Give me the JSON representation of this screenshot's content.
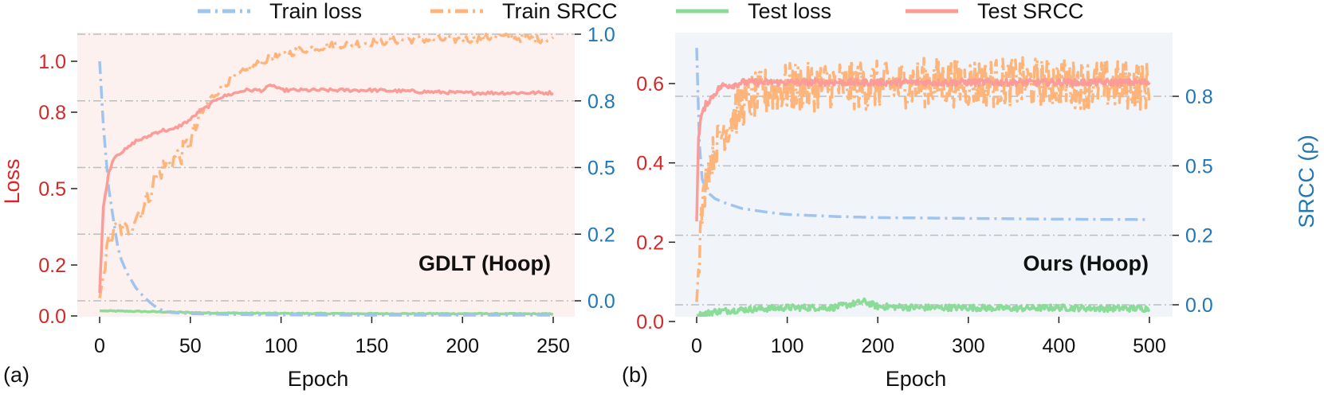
{
  "legend": [
    {
      "label": "Train loss",
      "color": "#a0c4ee",
      "dash": "dashdot"
    },
    {
      "label": "Train SRCC",
      "color": "#fdb57c",
      "dash": "dashdot"
    },
    {
      "label": "Test loss",
      "color": "#8bdc98",
      "dash": "solid"
    },
    {
      "label": "Test SRCC",
      "color": "#fb9c98",
      "dash": "solid"
    }
  ],
  "colors": {
    "loss_axis": "#d62728",
    "srcc_axis": "#1f77b4",
    "panel_a_bg": "#fdf1ef",
    "panel_b_bg": "#f1f5f9",
    "grid": "#bdbdbd"
  },
  "chart_data": [
    {
      "type": "line",
      "panel_label": "(a)",
      "annotation": "GDLT (Hoop)",
      "xlabel": "Epoch",
      "ylabel_left": "Loss",
      "ylabel_right": "",
      "xlim": [
        0,
        250
      ],
      "ylim_left": [
        0,
        1.0
      ],
      "ylim_right": [
        0,
        1.0
      ],
      "xticks": [
        0,
        50,
        100,
        150,
        200,
        250
      ],
      "yticks_left": [
        "0.0",
        "0.2",
        "0.5",
        "0.8",
        "1.0"
      ],
      "yticks_left_values": [
        0.0,
        0.2,
        0.5,
        0.8,
        1.0
      ],
      "yticks_right": [
        "0.0",
        "0.2",
        "0.5",
        "0.8",
        "1.0"
      ],
      "yticks_right_values": [
        0.0,
        0.25,
        0.5,
        0.75,
        1.0
      ],
      "grid": "horizontal dash-dot",
      "series": [
        {
          "name": "Train loss",
          "axis": "left",
          "x": [
            0,
            2,
            5,
            8,
            10,
            12,
            15,
            20,
            25,
            30,
            35,
            40,
            50,
            70,
            100,
            150,
            200,
            250
          ],
          "y": [
            1.0,
            0.75,
            0.5,
            0.36,
            0.27,
            0.22,
            0.17,
            0.11,
            0.07,
            0.04,
            0.02,
            0.013,
            0.009,
            0.006,
            0.004,
            0.003,
            0.003,
            0.003
          ]
        },
        {
          "name": "Train SRCC",
          "axis": "right",
          "x": [
            0,
            5,
            10,
            15,
            20,
            25,
            30,
            35,
            40,
            45,
            50,
            55,
            60,
            70,
            80,
            90,
            100,
            110,
            120,
            130,
            150,
            170,
            200,
            220,
            250
          ],
          "y": [
            0.01,
            0.22,
            0.28,
            0.26,
            0.32,
            0.36,
            0.45,
            0.5,
            0.53,
            0.55,
            0.6,
            0.68,
            0.75,
            0.82,
            0.86,
            0.9,
            0.92,
            0.94,
            0.95,
            0.96,
            0.97,
            0.98,
            0.98,
            0.99,
            0.98
          ]
        },
        {
          "name": "Test loss",
          "axis": "left",
          "x": [
            0,
            20,
            40,
            60,
            100,
            150,
            200,
            250
          ],
          "y": [
            0.02,
            0.018,
            0.015,
            0.012,
            0.01,
            0.009,
            0.009,
            0.008
          ]
        },
        {
          "name": "Test SRCC",
          "axis": "right",
          "x": [
            0,
            2,
            5,
            8,
            10,
            15,
            20,
            25,
            30,
            35,
            40,
            45,
            50,
            55,
            60,
            65,
            70,
            80,
            90,
            95,
            100,
            120,
            150,
            200,
            250
          ],
          "y": [
            0.03,
            0.35,
            0.48,
            0.54,
            0.55,
            0.57,
            0.6,
            0.61,
            0.63,
            0.64,
            0.64,
            0.66,
            0.68,
            0.71,
            0.73,
            0.76,
            0.77,
            0.79,
            0.79,
            0.81,
            0.79,
            0.79,
            0.79,
            0.78,
            0.78
          ]
        }
      ]
    },
    {
      "type": "line",
      "panel_label": "(b)",
      "annotation": "Ours (Hoop)",
      "xlabel": "Epoch",
      "ylabel_left": "",
      "ylabel_right": "SRCC (ρ)",
      "xlim": [
        0,
        500
      ],
      "ylim_left": [
        0,
        0.6
      ],
      "ylim_right": [
        0,
        0.8
      ],
      "xticks": [
        0,
        100,
        200,
        300,
        400,
        500
      ],
      "yticks_left": [
        "0.0",
        "0.2",
        "0.4",
        "0.6"
      ],
      "yticks_left_values": [
        0.0,
        0.2,
        0.4,
        0.6
      ],
      "yticks_right": [
        "0.0",
        "0.2",
        "0.5",
        "0.8"
      ],
      "yticks_right_values": [
        0.0,
        0.25,
        0.5,
        0.75
      ],
      "grid": "horizontal dash-dot",
      "series": [
        {
          "name": "Train loss",
          "axis": "left",
          "x": [
            0,
            3,
            6,
            10,
            15,
            20,
            30,
            50,
            80,
            100,
            150,
            200,
            300,
            400,
            500
          ],
          "y": [
            0.69,
            0.45,
            0.36,
            0.33,
            0.32,
            0.31,
            0.3,
            0.285,
            0.275,
            0.27,
            0.265,
            0.262,
            0.26,
            0.258,
            0.257
          ]
        },
        {
          "name": "Train SRCC",
          "axis": "right",
          "x": [
            0,
            5,
            10,
            15,
            20,
            25,
            30,
            40,
            50,
            60,
            80,
            100,
            150,
            200,
            250,
            300,
            350,
            400,
            450,
            500
          ],
          "y": [
            0.01,
            0.3,
            0.45,
            0.52,
            0.55,
            0.6,
            0.63,
            0.68,
            0.72,
            0.74,
            0.77,
            0.78,
            0.79,
            0.79,
            0.8,
            0.8,
            0.8,
            0.8,
            0.79,
            0.79
          ]
        },
        {
          "name": "Test loss",
          "axis": "left",
          "x": [
            0,
            20,
            50,
            100,
            150,
            185,
            200,
            250,
            300,
            350,
            400,
            450,
            500
          ],
          "y": [
            0.015,
            0.025,
            0.03,
            0.035,
            0.035,
            0.05,
            0.038,
            0.035,
            0.035,
            0.033,
            0.035,
            0.033,
            0.033
          ]
        },
        {
          "name": "Test SRCC",
          "axis": "right",
          "x": [
            0,
            2,
            5,
            8,
            10,
            15,
            20,
            25,
            30,
            40,
            50,
            60,
            80,
            100,
            150,
            200,
            300,
            400,
            500
          ],
          "y": [
            0.3,
            0.6,
            0.68,
            0.7,
            0.72,
            0.74,
            0.76,
            0.78,
            0.79,
            0.79,
            0.8,
            0.8,
            0.8,
            0.8,
            0.8,
            0.8,
            0.8,
            0.8,
            0.8
          ]
        }
      ]
    }
  ]
}
